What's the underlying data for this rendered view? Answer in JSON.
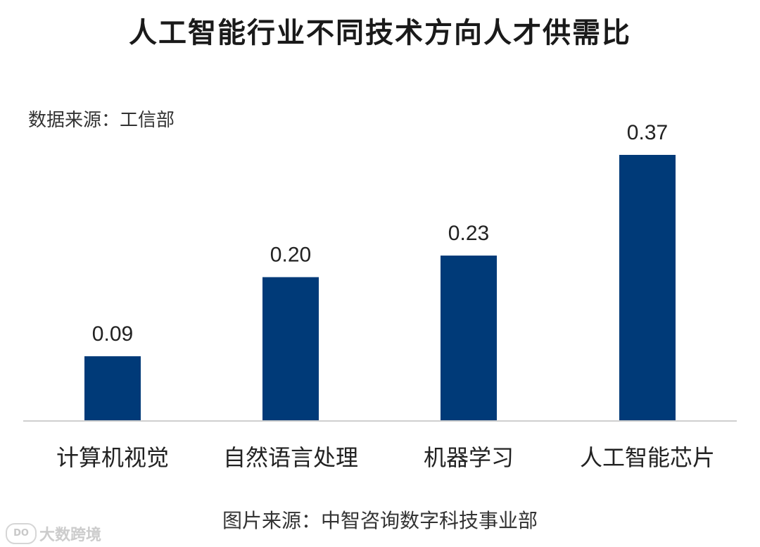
{
  "title": "人工智能行业不同技术方向人才供需比",
  "data_source_note": "数据来源：工信部",
  "image_source_note": "图片来源：中智咨询数字科技事业部",
  "watermark": {
    "text": "大数跨境",
    "logo_text": "DO"
  },
  "colors": {
    "bar": "#003a78",
    "axis": "#cfcfcf",
    "text": "#333333"
  },
  "chart_data": {
    "type": "bar",
    "categories": [
      "计算机视觉",
      "自然语言处理",
      "机器学习",
      "人工智能芯片"
    ],
    "values": [
      0.09,
      0.2,
      0.23,
      0.37
    ],
    "value_labels": [
      "0.09",
      "0.20",
      "0.23",
      "0.37"
    ],
    "ylim": [
      0,
      0.37
    ],
    "grid": false,
    "legend": "none"
  }
}
